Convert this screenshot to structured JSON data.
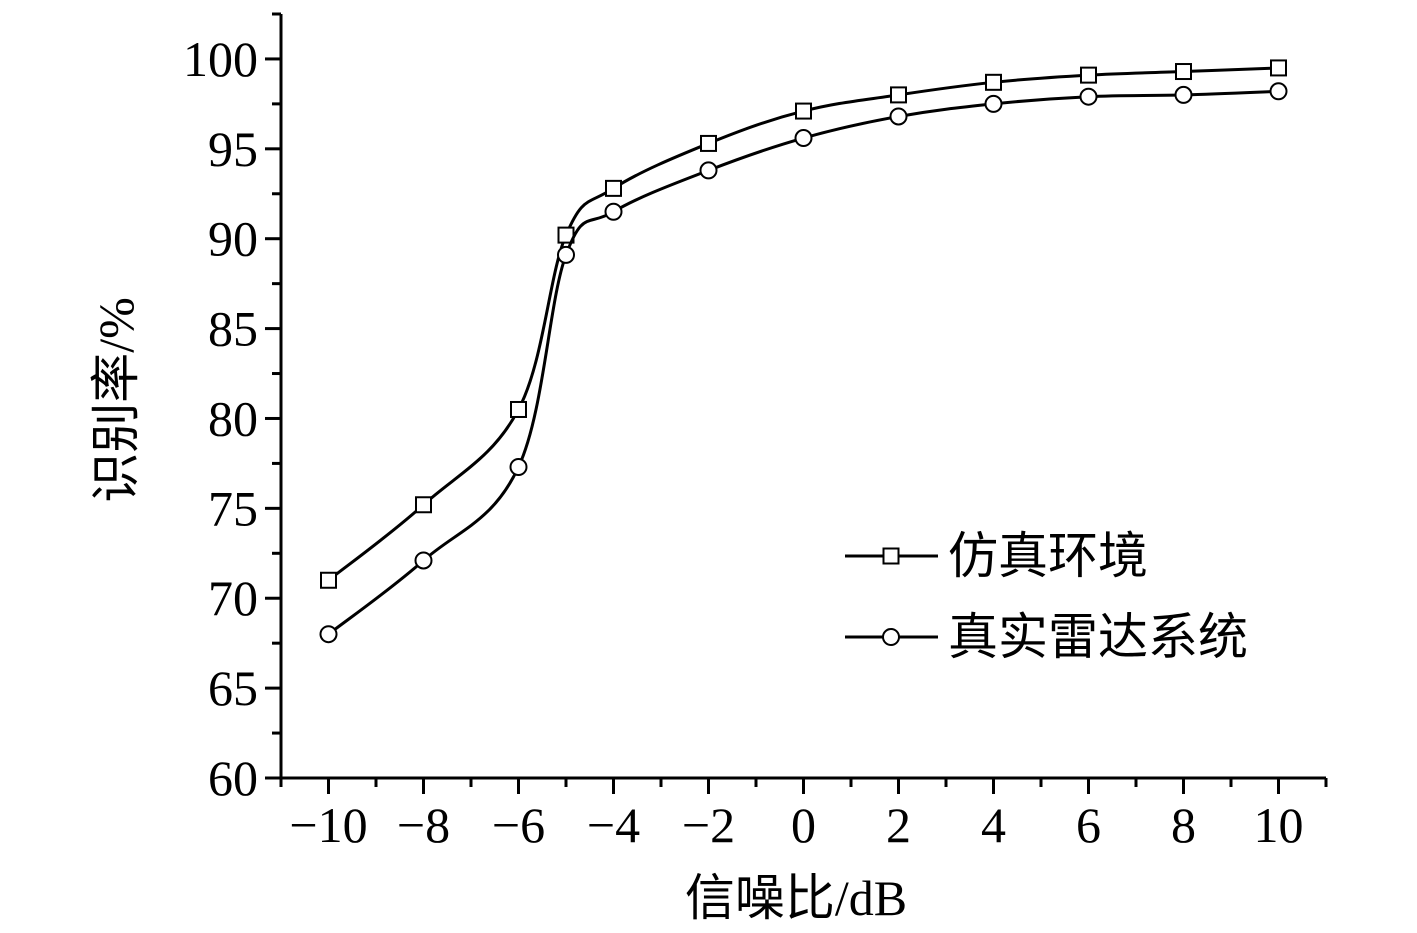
{
  "chart_data": {
    "type": "line",
    "xlabel": "信噪比/dB",
    "ylabel": "识别率/%",
    "x": [
      -10,
      -8,
      -6,
      -5,
      -4,
      -2,
      0,
      2,
      4,
      6,
      8,
      10
    ],
    "xticks": [
      -10,
      -8,
      -6,
      -4,
      -2,
      0,
      2,
      4,
      6,
      8,
      10
    ],
    "xtick_labels": [
      "−10",
      "−8",
      "−6",
      "−4",
      "−2",
      "0",
      "2",
      "4",
      "6",
      "8",
      "10"
    ],
    "xlim": [
      -11,
      11
    ],
    "yticks": [
      60,
      65,
      70,
      75,
      80,
      85,
      90,
      95,
      100
    ],
    "ytick_labels": [
      "60",
      "65",
      "70",
      "75",
      "80",
      "85",
      "90",
      "95",
      "100"
    ],
    "ylim": [
      60,
      102.5
    ],
    "grid": false,
    "legend_position": "center-right",
    "series": [
      {
        "name": "仿真环境",
        "marker": "square",
        "values": [
          71.0,
          75.2,
          80.5,
          90.2,
          92.8,
          95.3,
          97.1,
          98.0,
          98.7,
          99.1,
          99.3,
          99.5
        ]
      },
      {
        "name": "真实雷达系统",
        "marker": "circle",
        "values": [
          68.0,
          72.1,
          77.3,
          89.1,
          91.5,
          93.8,
          95.6,
          96.8,
          97.5,
          97.9,
          98.0,
          98.2
        ]
      }
    ],
    "colors": {
      "line": "#000000",
      "marker_fill": "#ffffff"
    }
  }
}
